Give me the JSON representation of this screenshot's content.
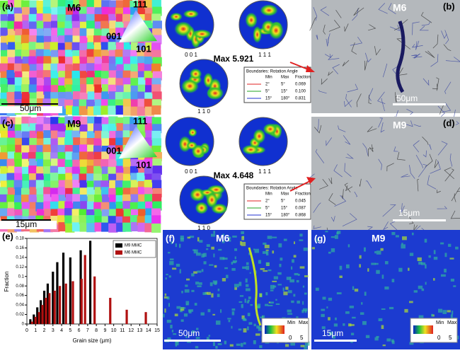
{
  "panels": {
    "a": {
      "label": "(a)",
      "title": "M6",
      "scale": "50μm",
      "ipf": {
        "top": "111",
        "left": "001",
        "right": "101"
      }
    },
    "pf_m6": {
      "labels": [
        "0 0 1",
        "1 1 1",
        "1 1 0"
      ],
      "max": "Max 5.921",
      "table": {
        "title": "Boundaries: Rotation Angle",
        "header": [
          "Min",
          "Max",
          "Fraction"
        ],
        "rows": [
          [
            "2°",
            "5°",
            "0.069"
          ],
          [
            "5°",
            "15°",
            "0.100"
          ],
          [
            "15°",
            "180°",
            "0.831"
          ]
        ]
      }
    },
    "b": {
      "label": "(b)",
      "title": "M6",
      "scale": "50μm"
    },
    "c": {
      "label": "(c)",
      "title": "M9",
      "scale": "15μm",
      "ipf": {
        "top": "111",
        "left": "001",
        "right": "101"
      }
    },
    "pf_m9": {
      "labels": [
        "0 0 1",
        "1 1 1",
        "1 1 0"
      ],
      "max": "Max 4.648",
      "table": {
        "title": "Boundaries: Rotation Angle",
        "header": [
          "Min",
          "Max",
          "Fraction"
        ],
        "rows": [
          [
            "2°",
            "5°",
            "0.045"
          ],
          [
            "5°",
            "15°",
            "0.087"
          ],
          [
            "15°",
            "180°",
            "0.868"
          ]
        ]
      }
    },
    "d": {
      "label": "(d)",
      "title": "M9",
      "scale": "15μm"
    },
    "f": {
      "label": "(f)",
      "title": "M6",
      "scale": "50μm",
      "colorbar": {
        "min": "Min",
        "max": "Max",
        "lo": "0",
        "hi": "5"
      }
    },
    "g": {
      "label": "(g)",
      "title": "M9",
      "scale": "15μm",
      "colorbar": {
        "min": "Min",
        "max": "Max",
        "lo": "0",
        "hi": "5"
      }
    }
  },
  "chart_data": {
    "type": "bar",
    "label": "(e)",
    "y_label": "Fraction",
    "x_label": "Grain size (μm)",
    "xlim": [
      0,
      15
    ],
    "xticks": [
      0,
      1,
      2,
      3,
      4,
      5,
      6,
      7,
      8,
      9,
      10,
      11,
      12,
      13,
      14,
      15
    ],
    "ylim": [
      0,
      0.18
    ],
    "yticks": [
      0,
      0.02,
      0.04,
      0.06,
      0.08,
      0.1,
      0.12,
      0.14,
      0.16,
      0.18
    ],
    "series": [
      {
        "name": "M9 MMC",
        "color": "#000000",
        "x": [
          0.4,
          0.8,
          1.2,
          1.6,
          2.0,
          2.4,
          3.0,
          3.5,
          4.2,
          5.0,
          6.2,
          7.3
        ],
        "values": [
          0.01,
          0.02,
          0.035,
          0.05,
          0.07,
          0.085,
          0.11,
          0.13,
          0.15,
          0.14,
          0.155,
          0.175
        ]
      },
      {
        "name": "M6 MMC",
        "color": "#b01010",
        "x": [
          0.6,
          1.0,
          1.4,
          1.8,
          2.2,
          2.6,
          3.2,
          3.8,
          4.5,
          5.3,
          6.3,
          6.7,
          7.8,
          9.6,
          11.5,
          13.7
        ],
        "values": [
          0.005,
          0.015,
          0.025,
          0.04,
          0.055,
          0.065,
          0.07,
          0.08,
          0.085,
          0.09,
          0.095,
          0.145,
          0.1,
          0.055,
          0.03,
          0.025
        ]
      }
    ]
  }
}
